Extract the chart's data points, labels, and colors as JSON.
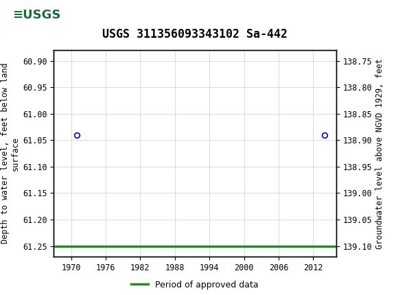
{
  "title": "USGS 311356093343102 Sa-442",
  "ylabel_left": "Depth to water level, feet below land\nsurface",
  "ylabel_right": "Groundwater level above NGVD 1929, feet",
  "xlim": [
    1967,
    2016
  ],
  "ylim_left": [
    60.88,
    61.27
  ],
  "ylim_right": [
    138.73,
    139.12
  ],
  "xticks": [
    1970,
    1976,
    1982,
    1988,
    1994,
    2000,
    2006,
    2012
  ],
  "yticks_left": [
    60.9,
    60.95,
    61.0,
    61.05,
    61.1,
    61.15,
    61.2,
    61.25
  ],
  "yticks_right": [
    139.1,
    139.05,
    139.0,
    138.95,
    138.9,
    138.85,
    138.8,
    138.75
  ],
  "circle_points_x": [
    1971,
    2014
  ],
  "circle_points_y": [
    61.04,
    61.04
  ],
  "green_line_y": 61.25,
  "green_line_color": "#228B22",
  "circle_color": "#0000cc",
  "background_color": "#ffffff",
  "header_color": "#1a6b3c",
  "grid_color": "#cccccc",
  "legend_label": "Period of approved data",
  "font_family": "monospace",
  "title_fontsize": 12,
  "axis_label_fontsize": 8.5,
  "tick_fontsize": 8.5,
  "legend_fontsize": 9
}
